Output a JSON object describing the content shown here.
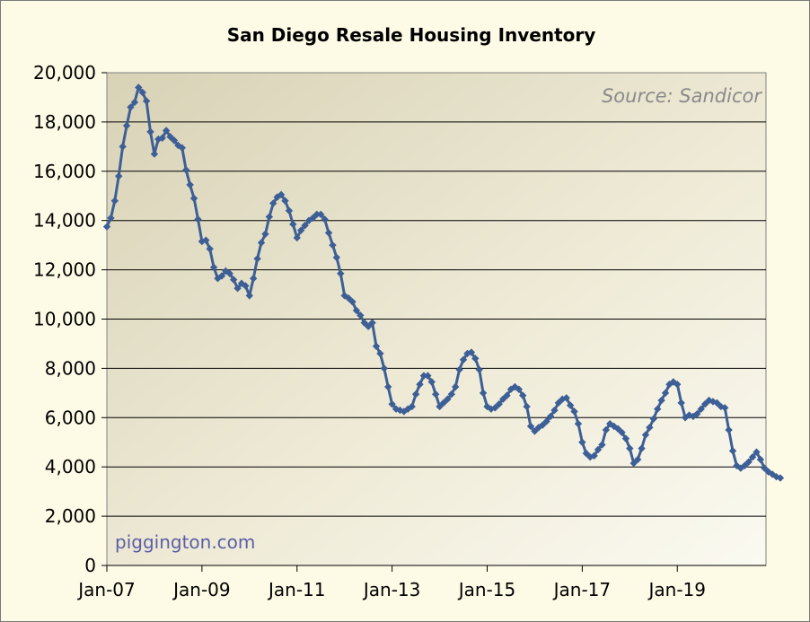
{
  "chart_data": {
    "type": "line",
    "title": "San Diego Resale Housing Inventory",
    "source_note": "Source: Sandicor",
    "credit": "piggington.com",
    "xlabel": "",
    "ylabel": "",
    "ylim": [
      0,
      20000
    ],
    "y_ticks": [
      0,
      2000,
      4000,
      6000,
      8000,
      10000,
      12000,
      14000,
      16000,
      18000,
      20000
    ],
    "y_tick_labels": [
      "0",
      "2,000",
      "4,000",
      "6,000",
      "8,000",
      "10,000",
      "12,000",
      "14,000",
      "16,000",
      "18,000",
      "20,000"
    ],
    "x_tick_labels": [
      "Jan-07",
      "Jan-09",
      "Jan-11",
      "Jan-13",
      "Jan-15",
      "Jan-17",
      "Jan-19"
    ],
    "x_start": "Jan-07",
    "x_interval": "monthly",
    "grid": true,
    "colors": {
      "line": "#3d5f96",
      "marker": "#3d5f96",
      "grid": "#000000"
    },
    "series": [
      {
        "values": [
          13750,
          14100,
          14800,
          15800,
          17000,
          17850,
          18600,
          18800,
          19400,
          19200,
          18850,
          17600,
          16700,
          17300,
          17350,
          17650,
          17400,
          17250,
          17050,
          16950,
          16050,
          15450,
          14900,
          14050,
          13150,
          13200,
          12850,
          12100,
          11650,
          11750,
          11950,
          11850,
          11600,
          11250,
          11450,
          11350,
          10950,
          11650,
          12450,
          13100,
          13450,
          14150,
          14700,
          14950,
          15050,
          14800,
          14400,
          13850,
          13300,
          13600,
          13800,
          14000,
          14100,
          14250,
          14250,
          14050,
          13500,
          13000,
          12500,
          11850,
          10950,
          10850,
          10700,
          10350,
          10150,
          9850,
          9700,
          9850,
          8900,
          8600,
          8000,
          7250,
          6550,
          6350,
          6300,
          6250,
          6350,
          6450,
          6950,
          7350,
          7700,
          7700,
          7450,
          6950,
          6450,
          6600,
          6750,
          6950,
          7250,
          7950,
          8350,
          8600,
          8650,
          8400,
          7950,
          7000,
          6450,
          6350,
          6400,
          6550,
          6750,
          6900,
          7150,
          7250,
          7150,
          6900,
          6450,
          5650,
          5450,
          5600,
          5700,
          5850,
          6050,
          6300,
          6600,
          6750,
          6800,
          6500,
          6250,
          5750,
          5000,
          4550,
          4400,
          4450,
          4700,
          4900,
          5500,
          5750,
          5650,
          5550,
          5400,
          5150,
          4750,
          4150,
          4300,
          4750,
          5300,
          5600,
          5950,
          6350,
          6700,
          7000,
          7350,
          7450,
          7350,
          6600,
          6000,
          6100,
          6050,
          6150,
          6350,
          6550,
          6700,
          6650,
          6600,
          6450,
          6400,
          5500,
          4650,
          4050,
          3950,
          4050,
          4200,
          4400,
          4600,
          4300,
          3950,
          3800,
          3700,
          3600,
          3550
        ]
      }
    ]
  }
}
